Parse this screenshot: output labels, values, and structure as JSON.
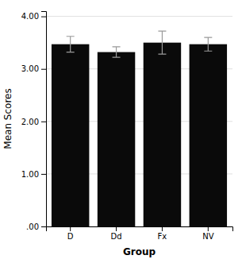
{
  "chart_data": {
    "type": "bar",
    "xlabel": "Group",
    "ylabel": "Mean Scores",
    "categories": [
      "D",
      "Dd",
      "Fx",
      "NV"
    ],
    "values": [
      3.47,
      3.32,
      3.5,
      3.47
    ],
    "errors": [
      0.15,
      0.1,
      0.22,
      0.13
    ],
    "color": "#0a0a0a",
    "ylim": [
      0.0,
      4.1
    ],
    "yticks": [
      {
        "value": 0.0,
        "label": ".00"
      },
      {
        "value": 1.0,
        "label": "1.00"
      },
      {
        "value": 2.0,
        "label": "2.00"
      },
      {
        "value": 3.0,
        "label": "3.00"
      },
      {
        "value": 4.0,
        "label": "4.00"
      }
    ],
    "grid": true
  }
}
